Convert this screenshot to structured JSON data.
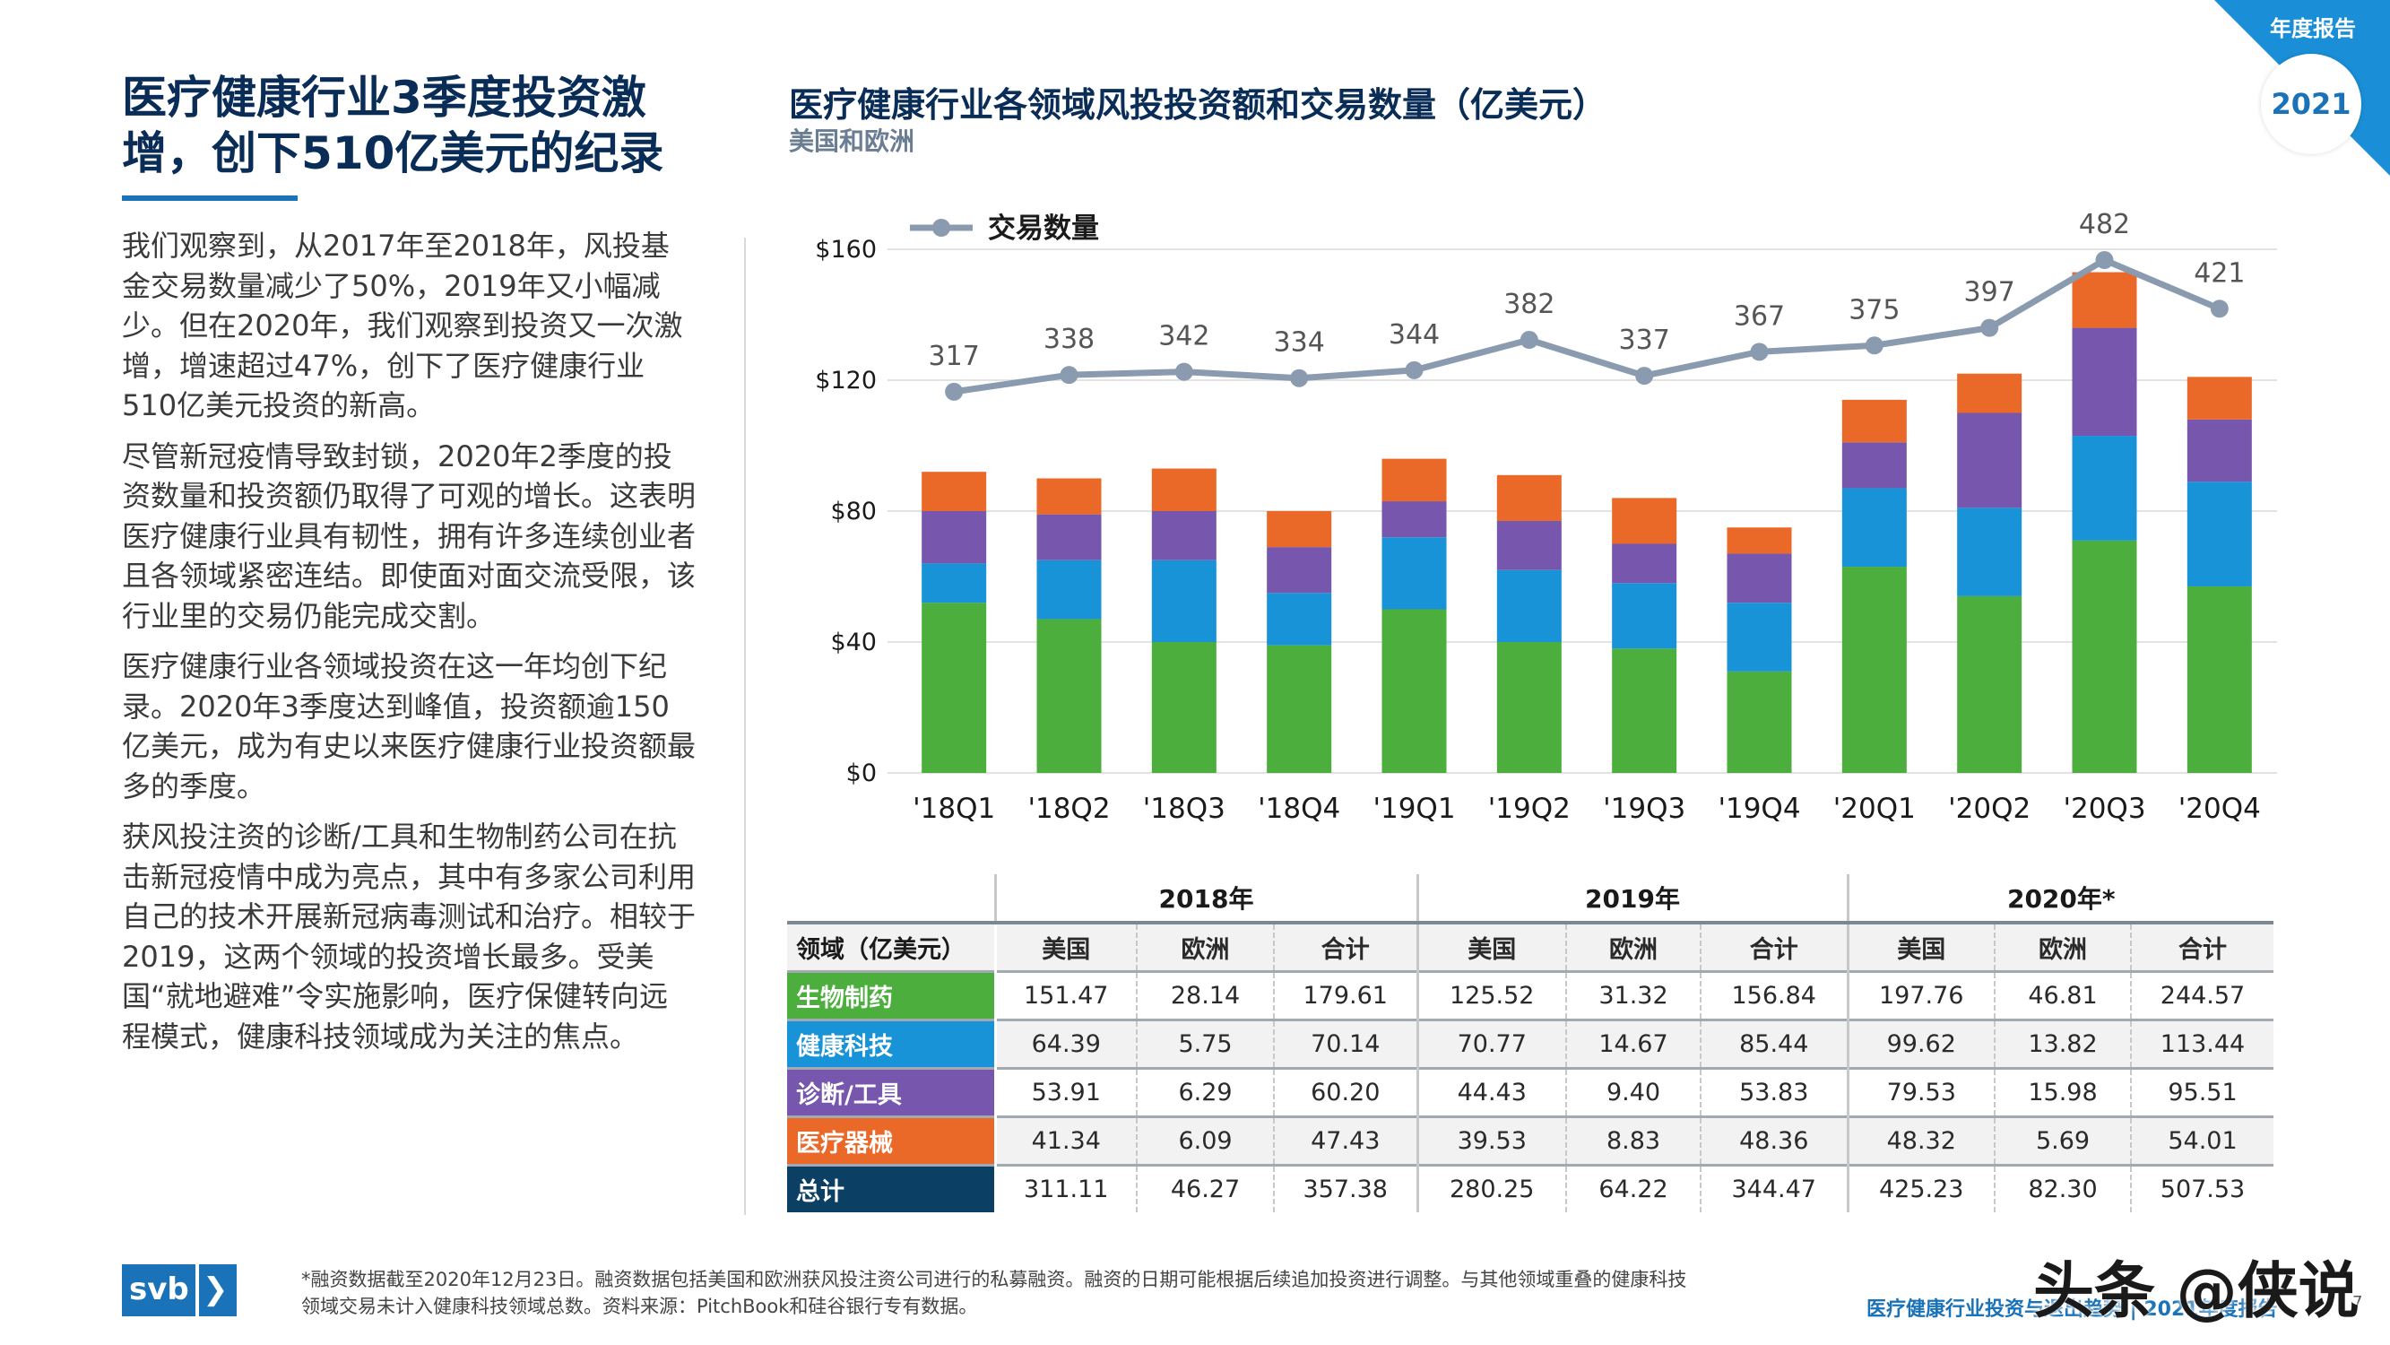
{
  "headline": {
    "line1": "医疗健康行业3季度投资激",
    "line2": "增，创下510亿美元的纪录"
  },
  "paragraphs": [
    "我们观察到，从2017年至2018年，风投基金交易数量减少了50%，2019年又小幅减少。但在2020年，我们观察到投资又一次激增，增速超过47%，创下了医疗健康行业510亿美元投资的新高。",
    "尽管新冠疫情导致封锁，2020年2季度的投资数量和投资额仍取得了可观的增长。这表明医疗健康行业具有韧性，拥有许多连续创业者且各领域紧密连结。即使面对面交流受限，该行业里的交易仍能完成交割。",
    "医疗健康行业各领域投资在这一年均创下纪录。2020年3季度达到峰值，投资额逾150亿美元，成为有史以来医疗健康行业投资额最多的季度。",
    "获风投注资的诊断/工具和生物制药公司在抗击新冠疫情中成为亮点，其中有多家公司利用自己的技术开展新冠病毒测试和治疗。相较于2019，这两个领域的投资增长最多。受美国“就地避难”令实施影响，医疗保健转向远程模式，健康科技领域成为关注的焦点。"
  ],
  "chart_header": {
    "title": "医疗健康行业各领域风投投资额和交易数量（亿美元）",
    "subtitle": "美国和欧洲"
  },
  "corner": {
    "label": "年度报告",
    "year": "2021"
  },
  "colors": {
    "biopharma": "#4caf3d",
    "healthtech": "#1893d8",
    "dx_tools": "#7657ad",
    "device": "#ea6828",
    "total": "#0b3f63",
    "line": "#8a9bb0",
    "navy": "#0a2d57",
    "accent": "#1a73b8"
  },
  "chart_data": {
    "type": "bar",
    "stacked": true,
    "categories": [
      "'18Q1",
      "'18Q2",
      "'18Q3",
      "'18Q4",
      "'19Q1",
      "'19Q2",
      "'19Q3",
      "'19Q4",
      "'20Q1",
      "'20Q2",
      "'20Q3",
      "'20Q4"
    ],
    "ylim": [
      0,
      160
    ],
    "yticks": [
      {
        "value": 0,
        "label": "$0"
      },
      {
        "value": 40,
        "label": "$40"
      },
      {
        "value": 80,
        "label": "$80"
      },
      {
        "value": 120,
        "label": "$120"
      },
      {
        "value": 160,
        "label": "$160"
      }
    ],
    "grid": true,
    "series": [
      {
        "key": "biopharma",
        "values": [
          52,
          47,
          40,
          39,
          50,
          40,
          38,
          31,
          63,
          54,
          71,
          57
        ]
      },
      {
        "key": "healthtech",
        "values": [
          12,
          18,
          25,
          16,
          22,
          22,
          20,
          21,
          24,
          27,
          32,
          32
        ]
      },
      {
        "key": "dx_tools",
        "values": [
          16,
          14,
          15,
          14,
          11,
          15,
          12,
          15,
          14,
          29,
          33,
          19
        ]
      },
      {
        "key": "device",
        "values": [
          12,
          11,
          13,
          11,
          13,
          14,
          14,
          8,
          13,
          12,
          17,
          13
        ]
      }
    ],
    "line": {
      "name": "交易数量",
      "values": [
        317,
        338,
        342,
        334,
        344,
        382,
        337,
        367,
        375,
        397,
        482,
        421
      ],
      "labels": [
        "317",
        "338",
        "342",
        "334",
        "344",
        "382",
        "337",
        "367",
        "375",
        "397",
        "482",
        "421"
      ]
    },
    "legend_position": "top-left"
  },
  "table": {
    "corner_label": "领域（亿美元）",
    "years": [
      "2018年",
      "2019年",
      "2020年*"
    ],
    "sub_headers": [
      "美国",
      "欧洲",
      "合计"
    ],
    "rows": [
      {
        "key": "biopharma",
        "label": "生物制药",
        "values": [
          "151.47",
          "28.14",
          "179.61",
          "125.52",
          "31.32",
          "156.84",
          "197.76",
          "46.81",
          "244.57"
        ]
      },
      {
        "key": "healthtech",
        "label": "健康科技",
        "values": [
          "64.39",
          "5.75",
          "70.14",
          "70.77",
          "14.67",
          "85.44",
          "99.62",
          "13.82",
          "113.44"
        ]
      },
      {
        "key": "dx_tools",
        "label": "诊断/工具",
        "values": [
          "53.91",
          "6.29",
          "60.20",
          "44.43",
          "9.40",
          "53.83",
          "79.53",
          "15.98",
          "95.51"
        ]
      },
      {
        "key": "device",
        "label": "医疗器械",
        "values": [
          "41.34",
          "6.09",
          "47.43",
          "39.53",
          "8.83",
          "48.36",
          "48.32",
          "5.69",
          "54.01"
        ]
      },
      {
        "key": "total",
        "label": "总计",
        "values": [
          "311.11",
          "46.27",
          "357.38",
          "280.25",
          "64.22",
          "344.47",
          "425.23",
          "82.30",
          "507.53"
        ]
      }
    ]
  },
  "footer": {
    "logo_text": "svb",
    "logo_chevron": "❯",
    "footnote": "*融资数据截至2020年12月23日。融资数据包括美国和欧洲获风投注资公司进行的私募融资。融资的日期可能根据后续追加投资进行调整。与其他领域重叠的健康科技领域交易未计入健康科技领域总数。资料来源：PitchBook和硅谷银行专有数据。",
    "report_title": "医疗健康行业投资与退出趋势 | 2021年度报告",
    "page_number": "7",
    "watermark": "头条 @侠说"
  }
}
